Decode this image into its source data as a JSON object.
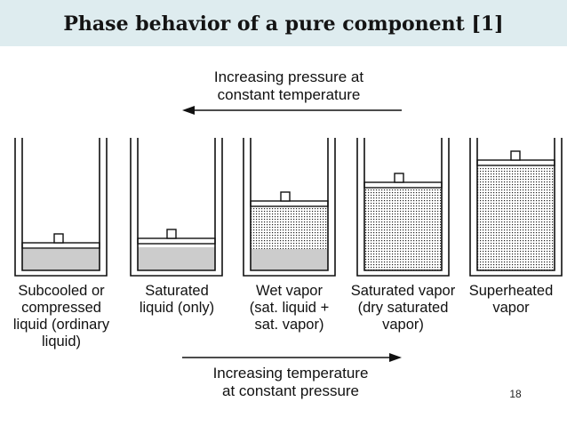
{
  "slide": {
    "title": "Phase behavior of a pure component [1]",
    "page_number": "18"
  },
  "top_arrow": {
    "label": "Increasing pressure at\nconstant temperature",
    "direction": "left"
  },
  "bottom_arrow": {
    "label": "Increasing temperature\nat constant pressure",
    "direction": "right"
  },
  "states": [
    {
      "label": "Subcooled or\ncompressed\nliquid (ordinary\nliquid)",
      "liquid_fraction": 1.0,
      "vapor_fraction": 0.0
    },
    {
      "label": "Saturated\nliquid (only)",
      "liquid_fraction": 1.0,
      "vapor_fraction": 0.0
    },
    {
      "label": "Wet vapor\n(sat. liquid +\nsat. vapor)",
      "liquid_fraction": 0.3,
      "vapor_fraction": 0.7
    },
    {
      "label": "Saturated vapor\n(dry saturated\nvapor)",
      "liquid_fraction": 0.0,
      "vapor_fraction": 1.0
    },
    {
      "label": "Superheated\nvapor",
      "liquid_fraction": 0.0,
      "vapor_fraction": 1.0
    }
  ],
  "colors": {
    "title_bar": "#deecef",
    "liquid": "#cccccc",
    "vapor_dots": "#222222",
    "outline": "#111111"
  }
}
